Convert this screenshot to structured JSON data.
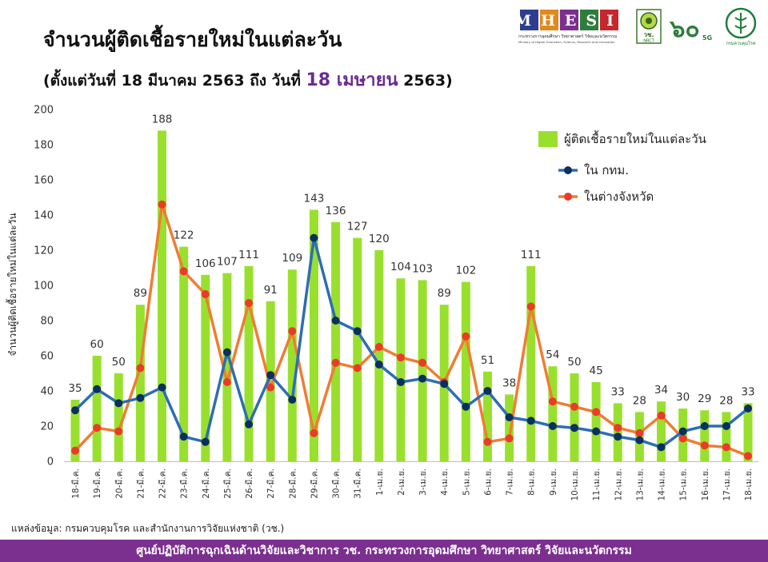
{
  "header": {
    "title": "จำนวนผู้ติดเชื้อรายใหม่ในแต่ละวัน",
    "subtitle_pre": "(ตั้งแต่วันที่ 18 มีนาคม 2563 ถึง วันที่ ",
    "subtitle_hl": "18 เมษายน",
    "subtitle_post": " 2563)"
  },
  "logos": {
    "mhesi": "MHESI",
    "mhesi_caption": "กระทรวงการอุดมศึกษา วิทยาศาสตร์ วิจัยและนวัตกรรม",
    "mhesi_caption_en": "Ministry of Higher Education, Science, Research and Innovation",
    "nrct": "วช.",
    "nrct_en": "NRCT",
    "anniversary": "๖๐",
    "anniversary_sub": "5G",
    "ddc": "กรมควบคุมโรค"
  },
  "chart_data": {
    "type": "bar",
    "categories": [
      "18-มี.ค.",
      "19-มี.ค.",
      "20-มี.ค.",
      "21-มี.ค.",
      "22-มี.ค.",
      "23-มี.ค.",
      "24-มี.ค.",
      "25-มี.ค.",
      "26-มี.ค.",
      "27-มี.ค.",
      "28-มี.ค.",
      "29-มี.ค.",
      "30-มี.ค.",
      "31-มี.ค.",
      "1-เม.ย.",
      "2-เม.ย.",
      "3-เม.ย.",
      "4-เม.ย.",
      "5-เม.ย.",
      "6-เม.ย.",
      "7-เม.ย.",
      "8-เม.ย.",
      "9-เม.ย.",
      "10-เม.ย.",
      "11-เม.ย.",
      "12-เม.ย.",
      "13-เม.ย.",
      "14-เม.ย.",
      "15-เม.ย.",
      "16-เม.ย.",
      "17-เม.ย.",
      "18-เม.ย."
    ],
    "series": [
      {
        "name": "ผู้ติดเชื้อรายใหม่ในแต่ละวัน",
        "type": "bar",
        "color": "#99e02e",
        "values": [
          35,
          60,
          50,
          89,
          188,
          122,
          106,
          107,
          111,
          91,
          109,
          143,
          136,
          127,
          120,
          104,
          103,
          89,
          102,
          51,
          38,
          111,
          54,
          50,
          45,
          33,
          28,
          34,
          30,
          29,
          28,
          33
        ]
      },
      {
        "name": "ใน กทม.",
        "type": "line",
        "color": "#2d6db5",
        "marker": "#0c2e60",
        "values": [
          29,
          41,
          33,
          36,
          42,
          14,
          11,
          62,
          21,
          49,
          35,
          127,
          80,
          74,
          55,
          45,
          47,
          44,
          31,
          40,
          25,
          23,
          20,
          19,
          17,
          14,
          12,
          8,
          17,
          20,
          20,
          30
        ]
      },
      {
        "name": "ในต่างจังหวัด",
        "type": "line",
        "color": "#ef7d31",
        "marker": "#ec3a2a",
        "values": [
          6,
          19,
          17,
          53,
          146,
          108,
          95,
          45,
          90,
          42,
          74,
          16,
          56,
          53,
          65,
          59,
          56,
          45,
          71,
          11,
          13,
          88,
          34,
          31,
          28,
          19,
          16,
          26,
          13,
          9,
          8,
          3
        ]
      }
    ],
    "ylabel": "จำนวนผู้ติดเชื้อรายใหม่ในแต่ละวัน",
    "xlabel": "",
    "ylim": [
      0,
      200
    ],
    "yticks": [
      0,
      20,
      40,
      60,
      80,
      100,
      120,
      140,
      160,
      180,
      200
    ],
    "grid": false,
    "legend": "top-right"
  },
  "source": "แหล่งข้อมูล: กรมควบคุมโรค และสำนักงานการวิจัยแห่งชาติ (วช.)",
  "footer": "ศูนย์ปฏิบัติการฉุกเฉินด้านวิจัยและวิชาการ   วช.   กระทรวงการอุดมศึกษา วิทยาศาสตร์ วิจัยและนวัตกรรม"
}
